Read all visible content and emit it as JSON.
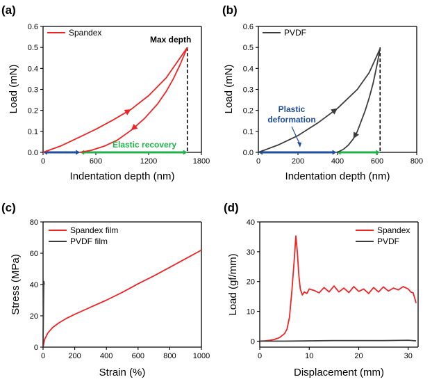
{
  "colors": {
    "spandex": "#ee2424",
    "pvdf": "#3c3c3c",
    "plastic": "#1f4e9e",
    "elastic": "#22b24c",
    "axis": "#000000"
  },
  "chart_data": [
    {
      "panel": "(a)",
      "type": "line",
      "xlabel": "Indentation depth (nm)",
      "ylabel": "Load (mN)",
      "xlim": [
        0,
        1800
      ],
      "ylim": [
        0,
        0.6
      ],
      "xticks": [
        "0",
        "600",
        "1200",
        "1800"
      ],
      "yticks": [
        "0.0",
        "0.1",
        "0.2",
        "0.3",
        "0.4",
        "0.5",
        "0.6"
      ],
      "legend": "Spandex",
      "legend_position": "top-left",
      "series": [
        {
          "name": "Spandex loading",
          "x": [
            0,
            200,
            400,
            600,
            800,
            1000,
            1200,
            1400,
            1640
          ],
          "y": [
            0,
            0.03,
            0.07,
            0.11,
            0.155,
            0.205,
            0.27,
            0.355,
            0.5
          ]
        },
        {
          "name": "Spandex unloading",
          "x": [
            1640,
            1560,
            1480,
            1400,
            1300,
            1150,
            1000,
            850,
            700,
            550,
            420
          ],
          "y": [
            0.5,
            0.42,
            0.35,
            0.29,
            0.23,
            0.16,
            0.105,
            0.06,
            0.03,
            0.01,
            0
          ]
        }
      ],
      "annotations": {
        "max_depth": "Max depth",
        "elastic": "Elastic recovery",
        "max_depth_x": 1640,
        "plastic_range": [
          0,
          420
        ],
        "elastic_range": [
          420,
          1640
        ]
      }
    },
    {
      "panel": "(b)",
      "type": "line",
      "xlabel": "Indentation depth (nm)",
      "ylabel": "Load (mN)",
      "xlim": [
        0,
        800
      ],
      "ylim": [
        0,
        0.6
      ],
      "xticks": [
        "0",
        "200",
        "400",
        "600",
        "800"
      ],
      "yticks": [
        "0.0",
        "0.1",
        "0.2",
        "0.3",
        "0.4",
        "0.5",
        "0.6"
      ],
      "legend": "PVDF",
      "legend_position": "top-left",
      "series": [
        {
          "name": "PVDF loading",
          "x": [
            0,
            100,
            200,
            300,
            400,
            500,
            560,
            615
          ],
          "y": [
            0,
            0.035,
            0.08,
            0.14,
            0.21,
            0.3,
            0.38,
            0.495
          ]
        },
        {
          "name": "PVDF unloading",
          "x": [
            615,
            600,
            580,
            560,
            540,
            520,
            500,
            480,
            455,
            430,
            410,
            395
          ],
          "y": [
            0.495,
            0.42,
            0.33,
            0.26,
            0.2,
            0.15,
            0.1,
            0.065,
            0.035,
            0.015,
            0.005,
            0
          ]
        }
      ],
      "annotations": {
        "plastic": "Plastic deformation",
        "plastic_line1": "Plastic",
        "plastic_line2": "deformation",
        "max_depth_x": 615,
        "plastic_range": [
          0,
          395
        ],
        "elastic_range": [
          395,
          615
        ]
      }
    },
    {
      "panel": "(c)",
      "type": "line",
      "xlabel": "Strain (%)",
      "ylabel": "Stress (MPa)",
      "xlim": [
        0,
        1000
      ],
      "ylim": [
        0,
        80
      ],
      "xticks": [
        "0",
        "200",
        "400",
        "600",
        "800",
        "1000"
      ],
      "yticks": [
        "0",
        "20",
        "40",
        "60",
        "80"
      ],
      "legend_position": "top-left",
      "series": [
        {
          "name": "Spandex film",
          "x": [
            0,
            10,
            30,
            60,
            100,
            150,
            200,
            300,
            400,
            500,
            600,
            700,
            800,
            900,
            1000
          ],
          "y": [
            0,
            5,
            9,
            12.5,
            15.5,
            18.5,
            21,
            25.5,
            30,
            35,
            40.5,
            45.5,
            51,
            56.5,
            62
          ]
        },
        {
          "name": "PVDF film",
          "x": [
            0,
            1,
            2,
            3,
            4,
            5,
            6,
            7
          ],
          "y": [
            0,
            10,
            20,
            30,
            38,
            42,
            41,
            40
          ]
        }
      ]
    },
    {
      "panel": "(d)",
      "type": "line",
      "xlabel": "Displacement (mm)",
      "ylabel": "Load (gf/mm)",
      "xlim": [
        0,
        32
      ],
      "ylim": [
        -2,
        40
      ],
      "xticks": [
        "0",
        "10",
        "20",
        "30"
      ],
      "yticks": [
        "0",
        "10",
        "20",
        "30",
        "40"
      ],
      "legend_position": "top-right",
      "series": [
        {
          "name": "Spandex",
          "x": [
            0,
            1,
            2,
            3,
            4,
            5,
            5.5,
            6,
            6.5,
            7,
            7.3,
            7.6,
            7.9,
            8.2,
            8.6,
            9.0,
            9.5,
            10,
            11,
            12,
            13,
            14,
            15,
            16,
            17,
            18,
            19,
            20,
            21,
            22,
            23,
            24,
            25,
            26,
            27,
            28,
            29,
            30,
            30.5,
            31,
            31.3,
            31.6
          ],
          "y": [
            0,
            0.1,
            0.3,
            0.6,
            1.2,
            2.5,
            4,
            8,
            17,
            28,
            35.3,
            30,
            22,
            17.5,
            15.5,
            16.5,
            16,
            17.5,
            17,
            16.2,
            18,
            16.5,
            18.5,
            16.5,
            17.8,
            16.3,
            18.3,
            16.7,
            17.5,
            16,
            18,
            16.5,
            18.2,
            16.8,
            17.8,
            17.2,
            18.3,
            17.5,
            16.5,
            16.2,
            14.5,
            12.8
          ]
        },
        {
          "name": "PVDF",
          "x": [
            0,
            5,
            10,
            15,
            20,
            25,
            30,
            31.6
          ],
          "y": [
            0,
            0,
            0.1,
            0.2,
            0.2,
            0.2,
            0.3,
            0.1
          ]
        }
      ]
    }
  ]
}
